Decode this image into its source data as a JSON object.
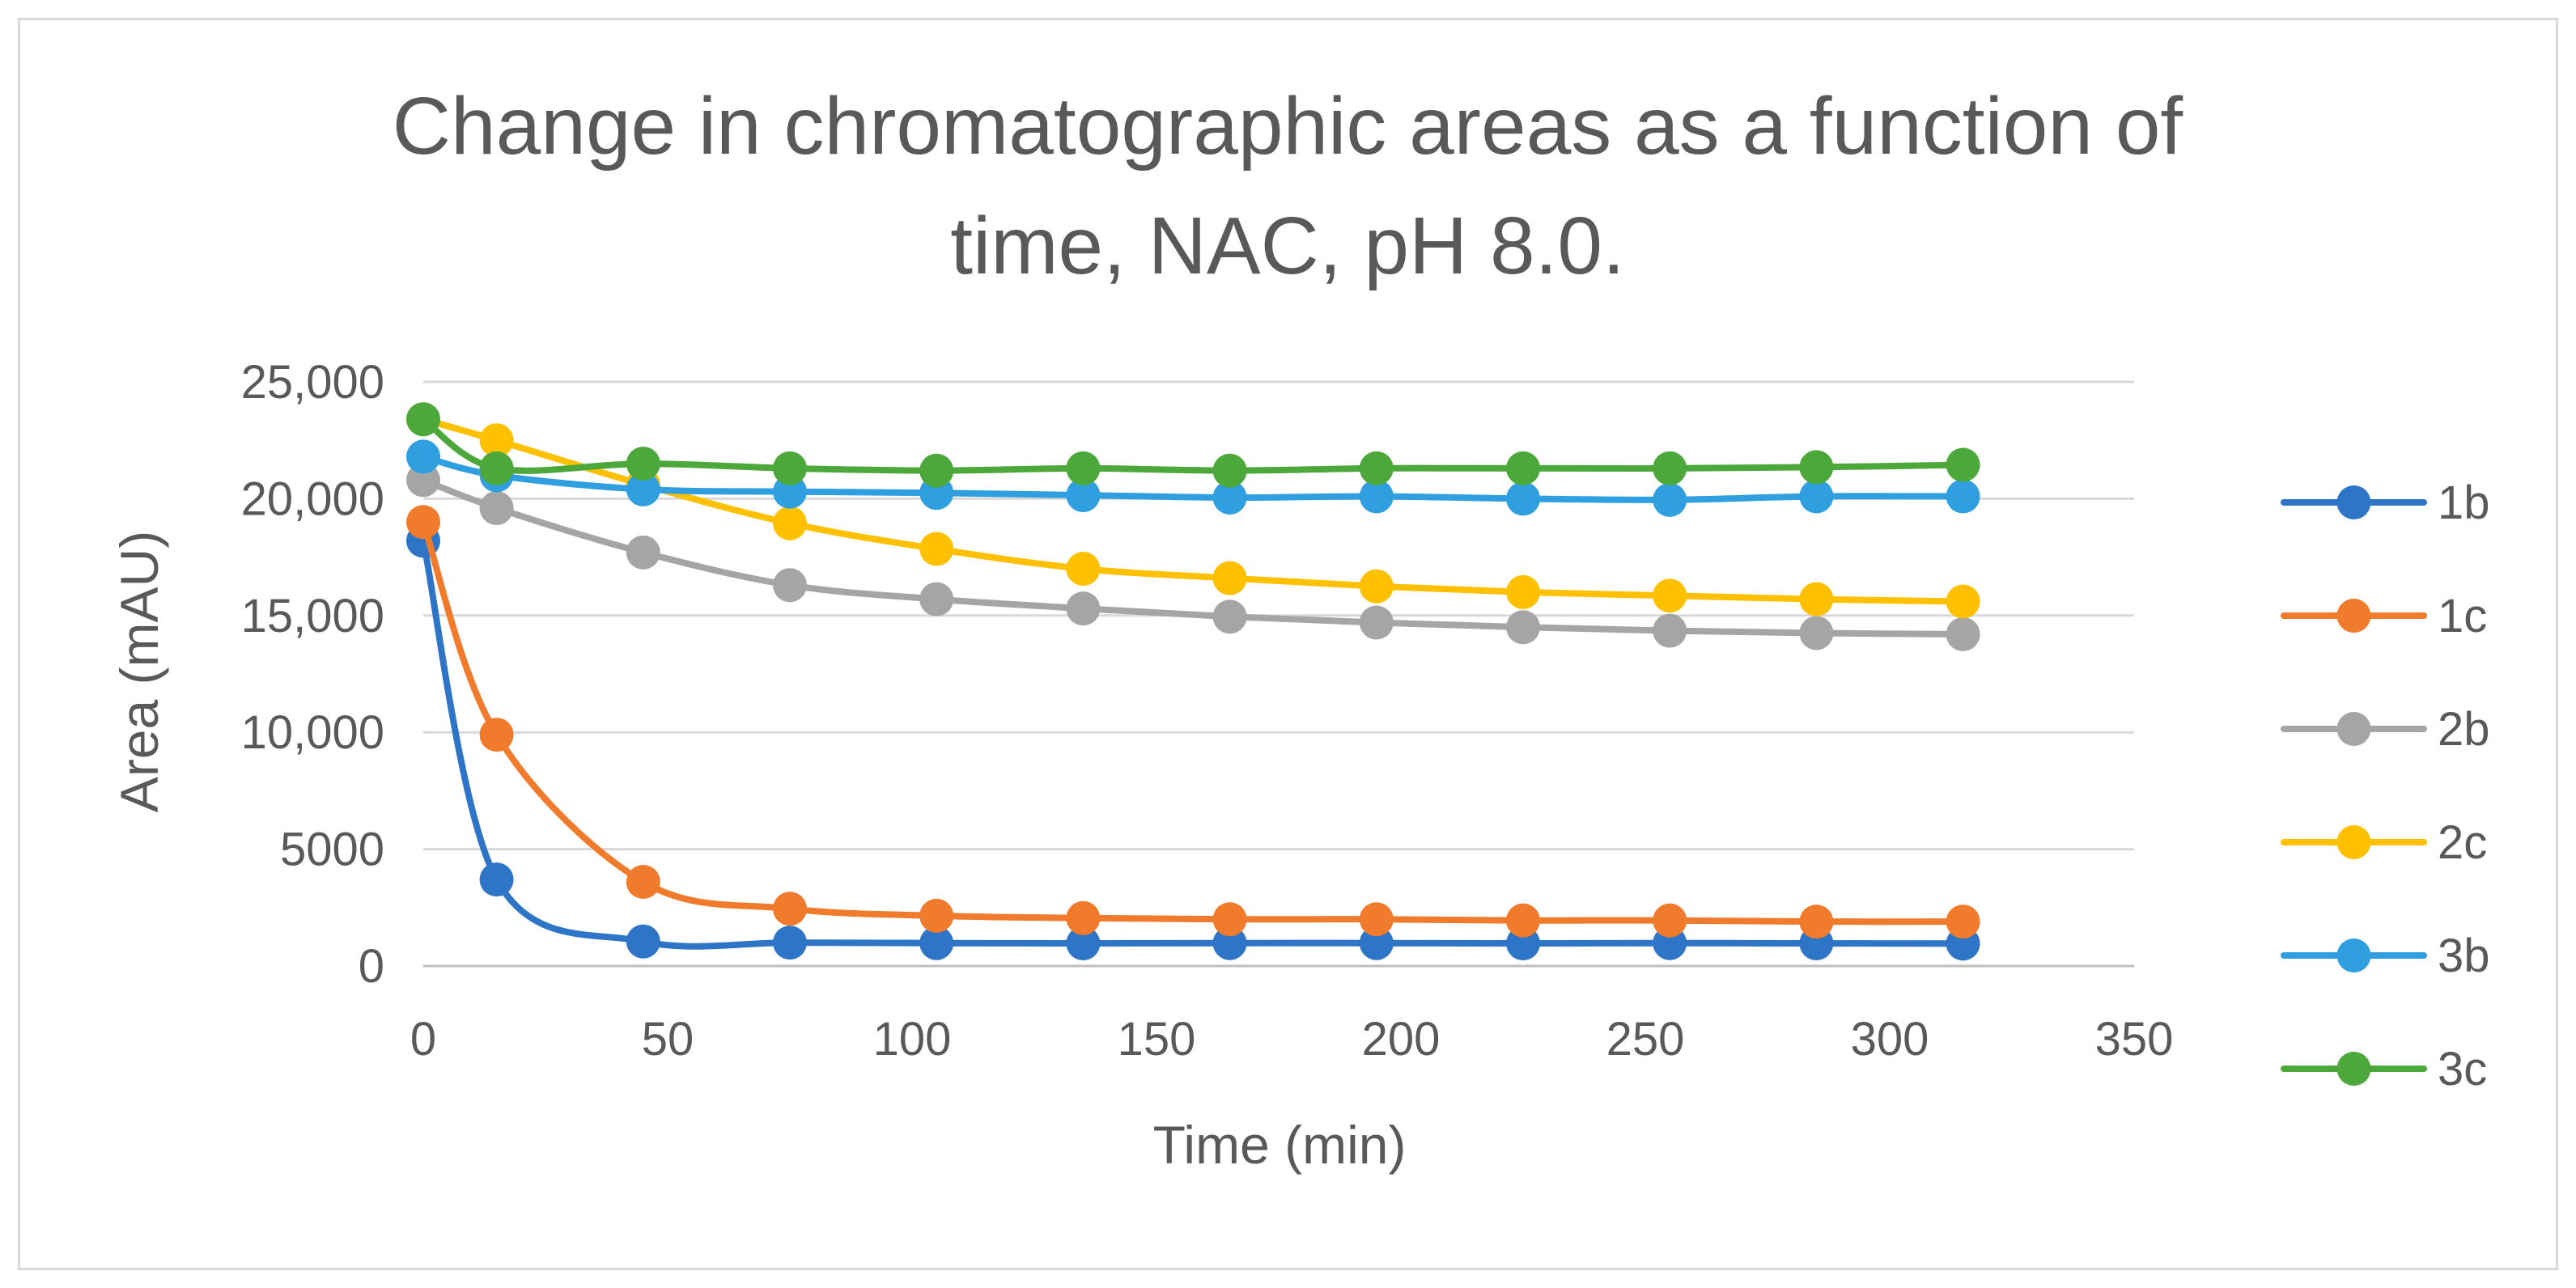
{
  "chart_data": {
    "type": "line",
    "title_lines": [
      "Change in chromatographic areas as a function of",
      "time, NAC, pH 8.0."
    ],
    "xlabel": "Time (min)",
    "ylabel": "Area (mAU)",
    "xlim": [
      0,
      350
    ],
    "ylim": [
      0,
      25000
    ],
    "x_ticks": [
      0,
      50,
      100,
      150,
      200,
      250,
      300,
      350
    ],
    "x_tick_labels": [
      "0",
      "50",
      "100",
      "150",
      "200",
      "250",
      "300",
      "350"
    ],
    "y_ticks": [
      0,
      5000,
      10000,
      15000,
      20000,
      25000
    ],
    "y_tick_labels": [
      "0",
      "5000",
      "10,000",
      "15,000",
      "20,000",
      "25,000"
    ],
    "grid": "horizontal",
    "legend_position": "right",
    "x": [
      0,
      15,
      45,
      75,
      105,
      135,
      165,
      195,
      225,
      255,
      285,
      315
    ],
    "series": [
      {
        "name": "1b",
        "color": "#2e75c7",
        "values": [
          18200,
          3700,
          1050,
          1000,
          980,
          970,
          980,
          980,
          970,
          980,
          970,
          960
        ]
      },
      {
        "name": "1c",
        "color": "#f07b2c",
        "values": [
          19000,
          9900,
          3600,
          2450,
          2150,
          2050,
          2000,
          2000,
          1950,
          1950,
          1900,
          1900
        ]
      },
      {
        "name": "2b",
        "color": "#a5a5a5",
        "values": [
          20800,
          19600,
          17700,
          16300,
          15700,
          15300,
          14950,
          14700,
          14500,
          14350,
          14250,
          14200
        ]
      },
      {
        "name": "2c",
        "color": "#ffc000",
        "values": [
          23400,
          22500,
          20600,
          18950,
          17850,
          17000,
          16600,
          16250,
          16000,
          15850,
          15700,
          15600
        ]
      },
      {
        "name": "3b",
        "color": "#2f9fe0",
        "values": [
          21800,
          21000,
          20400,
          20300,
          20250,
          20150,
          20050,
          20100,
          20000,
          19950,
          20100,
          20100
        ]
      },
      {
        "name": "3c",
        "color": "#4ca83a",
        "values": [
          23400,
          21300,
          21500,
          21300,
          21200,
          21300,
          21200,
          21300,
          21300,
          21300,
          21350,
          21450
        ]
      }
    ]
  }
}
